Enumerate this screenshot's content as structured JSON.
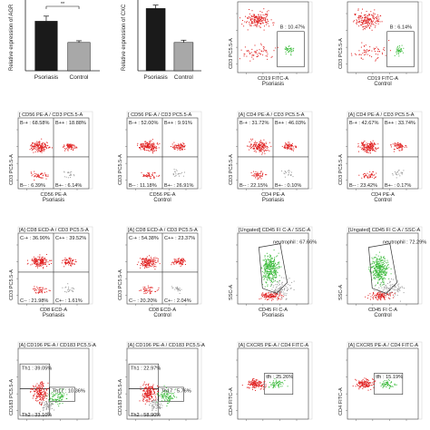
{
  "figure": {
    "bar_charts": [
      {
        "ylabel": "Relative expression of AGR",
        "categories": [
          "Psoriasis",
          "Control"
        ],
        "values": [
          1.75,
          1.0
        ],
        "errors": [
          0.18,
          0.06
        ],
        "significance": "**",
        "ylim": [
          0,
          2.5
        ]
      },
      {
        "ylabel": "Relative expression of CXC",
        "categories": [
          "Psoriasis",
          "Control"
        ],
        "values": [
          2.2,
          1.0
        ],
        "errors": [
          0.12,
          0.08
        ],
        "significance": "",
        "ylim": [
          0,
          2.5
        ]
      }
    ],
    "panels": [
      {
        "title": "",
        "xlabel": "CD19 FITC-A",
        "ylabel": "CD3 PC5.5-A",
        "group": "Psoriasis",
        "gates": [
          "B : 10.47%"
        ]
      },
      {
        "title": "",
        "xlabel": "CD19 FITC-A",
        "ylabel": "CD3 PC5.5-A",
        "group": "Control",
        "gates": [
          "B : 6.14%"
        ]
      },
      {
        "title": "[ CD56 PE-A / CD3 PC5.5-A",
        "xlabel": "CD56 PE-A",
        "ylabel": "CD3 PC5.5-A",
        "group": "Psoriasis",
        "gates": [
          "B-+ : 68.58%",
          "B++ : 18.88%",
          "B-- : 6.39%",
          "B+- : 6.14%"
        ]
      },
      {
        "title": "[ CD56 PE-A / CD3 PC5.5-A",
        "xlabel": "CD56 PE-A",
        "ylabel": "CD3 PC5.5-A",
        "group": "Control",
        "gates": [
          "B-+ : 52.00%",
          "B++ : 9.91%",
          "B-- : 11.18%",
          "B+- : 26.91%"
        ]
      },
      {
        "title": "[A] CD4 PE-A / CD3 PC5.5-A",
        "xlabel": "CD4 PE-A",
        "ylabel": "CD3 PC5.5-A",
        "group": "Psoriasis",
        "gates": [
          "B-+ : 31.72%",
          "B++ : 46.03%",
          "B-- : 22.15%",
          "B+- : 0.10%"
        ]
      },
      {
        "title": "[A] CD4 PE-A / CD3 PC5.5-A",
        "xlabel": "CD4 PE-A",
        "ylabel": "CD3 PC5.5-A",
        "group": "Control",
        "gates": [
          "B-+ : 42.67%",
          "B++ : 33.74%",
          "B-- : 23.42%",
          "B+- : 0.17%"
        ]
      },
      {
        "title": "[A] CD8 ECD-A / CD3 PC5.5-A",
        "xlabel": "CD8 ECD-A",
        "ylabel": "CD3 PC5.5-A",
        "group": "Psoriasis",
        "gates": [
          "C-+ : 36.90%",
          "C++ : 39.52%",
          "C-- : 21.98%",
          "C+- : 1.61%"
        ]
      },
      {
        "title": "[A] CD8 ECD-A / CD3 PC5.5-A",
        "xlabel": "CD8 ECD-A",
        "ylabel": "CD3 PC5.5-A",
        "group": "Control",
        "gates": [
          "C-+ : 54.38%",
          "C++ : 23.37%",
          "C-- : 20.20%",
          "C+- : 2.04%"
        ]
      },
      {
        "title": "[Ungated] CD45 FI C-A / SSC-A",
        "xlabel": "CD45 FI C-A",
        "ylabel": "SSC-A",
        "group": "Psoriasis",
        "gates": [
          "neutrophil : 67.66%"
        ]
      },
      {
        "title": "[Ungated] CD45 FI C-A / SSC-A",
        "xlabel": "CD45 FI C-A",
        "ylabel": "SSC-A",
        "group": "Control",
        "gates": [
          "neutrophil : 72.29%"
        ]
      },
      {
        "title": "[A] CD196 PE-A / CD183 PC5.5-A",
        "xlabel": "",
        "ylabel": "CD183 PC5.5-A",
        "group": "",
        "gates": [
          "Th1 : 39.05%",
          "Th17 : 10.36%",
          "Th2 : 33.10%"
        ]
      },
      {
        "title": "[A] CD196 PE-A / CD183 PC5.5-A",
        "xlabel": "",
        "ylabel": "CD183 PC5.5-A",
        "group": "",
        "gates": [
          "Th1 : 22.97%",
          "Th17 : 5.76%",
          "Th2 : 58.90%"
        ]
      },
      {
        "title": "[A] CXCR5 PE-A / CD4 FITC-A",
        "xlabel": "",
        "ylabel": "CD4 FITC-A",
        "group": "",
        "gates": [
          "tfh : 25.26%"
        ]
      },
      {
        "title": "[A] CXCR5 PE-A / CD4 FITC-A",
        "xlabel": "",
        "ylabel": "CD4 FITC-A",
        "group": "",
        "gates": [
          "tfh : 15.19%"
        ]
      }
    ],
    "colors": {
      "event_red": "#e02020",
      "event_green": "#3cbb3c",
      "event_gray": "#9a9a9a",
      "bar_dark": "#1a1a1a",
      "bar_light": "#a8a8a8"
    }
  }
}
